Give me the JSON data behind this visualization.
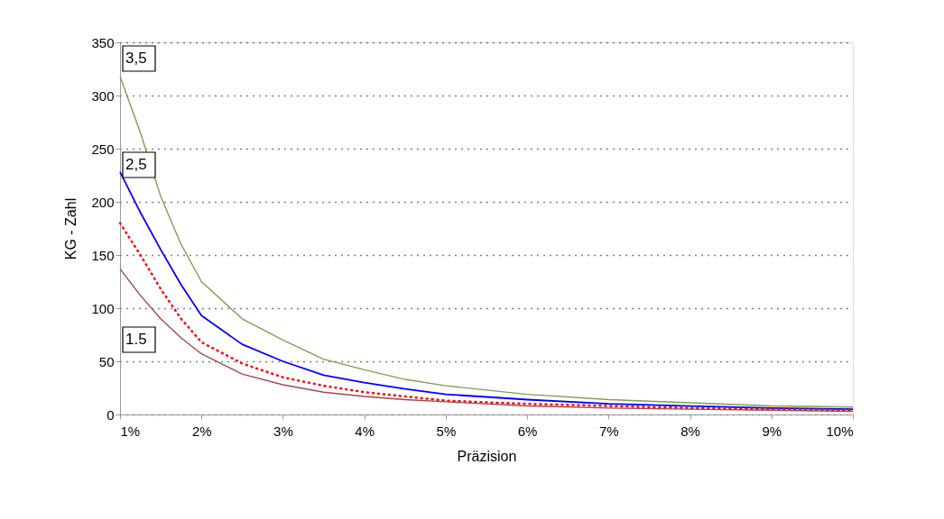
{
  "chart_data": {
    "type": "line",
    "xlabel": "Präzision",
    "ylabel": "KG - Zahl",
    "x": [
      1,
      1.25,
      1.5,
      1.75,
      2,
      2.5,
      3,
      3.5,
      4,
      4.5,
      5,
      6,
      7,
      8,
      9,
      10
    ],
    "series": [
      {
        "color": "#7f9f50",
        "line_style": "solid",
        "values": [
          318,
          265,
          205,
          160,
          125,
          90,
          70,
          52,
          42,
          33,
          27,
          19,
          14,
          11,
          8,
          7
        ]
      },
      {
        "color": "#0000ff",
        "line_style": "solid",
        "values": [
          228,
          190,
          155,
          122,
          93,
          66,
          50,
          37,
          30,
          24,
          19,
          14,
          10,
          8,
          6,
          5
        ]
      },
      {
        "color": "#ff0000",
        "line_style": "dotted",
        "values": [
          180,
          150,
          118,
          90,
          68,
          48,
          35,
          27,
          21,
          17,
          13,
          10,
          8,
          6,
          5,
          4
        ]
      },
      {
        "color": "#a04848",
        "line_style": "solid",
        "values": [
          137,
          112,
          90,
          72,
          57,
          38,
          28,
          21,
          17,
          14,
          12,
          8,
          6,
          5,
          4,
          3
        ]
      }
    ],
    "xlim": [
      1,
      10
    ],
    "xticks": [
      {
        "value": 1,
        "label": "1%"
      },
      {
        "value": 2,
        "label": "2%"
      },
      {
        "value": 3,
        "label": "3%"
      },
      {
        "value": 4,
        "label": "4%"
      },
      {
        "value": 5,
        "label": "5%"
      },
      {
        "value": 6,
        "label": "6%"
      },
      {
        "value": 7,
        "label": "7%"
      },
      {
        "value": 8,
        "label": "8%"
      },
      {
        "value": 9,
        "label": "9%"
      },
      {
        "value": 10,
        "label": "10%"
      }
    ],
    "ylim": [
      0,
      350
    ],
    "yticks": [
      0,
      50,
      100,
      150,
      200,
      250,
      300,
      350
    ],
    "grid": "y",
    "marker": "none",
    "annotations": [
      "3,5",
      "2,5",
      "1.5"
    ]
  }
}
